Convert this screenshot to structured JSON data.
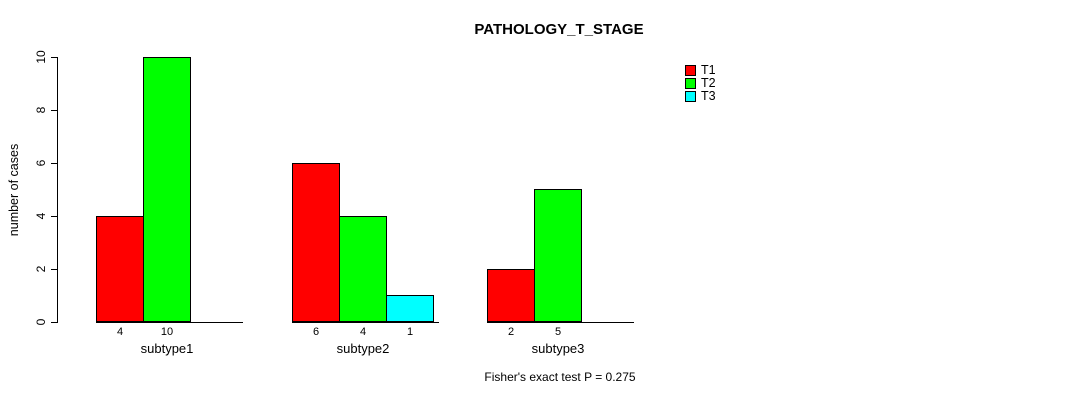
{
  "chart_data": {
    "type": "bar",
    "title": "PATHOLOGY_T_STAGE",
    "xlabel": "",
    "ylabel": "number of cases",
    "categories": [
      "subtype1",
      "subtype2",
      "subtype3"
    ],
    "series": [
      {
        "name": "T1",
        "color": "#ff0000",
        "values": [
          4,
          6,
          2
        ]
      },
      {
        "name": "T2",
        "color": "#00ff00",
        "values": [
          10,
          4,
          5
        ]
      },
      {
        "name": "T3",
        "color": "#00ffff",
        "values": [
          0,
          1,
          0
        ]
      }
    ],
    "bar_labels": [
      [
        "4",
        "10"
      ],
      [
        "6",
        "4",
        "1"
      ],
      [
        "2",
        "5"
      ]
    ],
    "yticks": [
      "0",
      "2",
      "4",
      "6",
      "8",
      "10"
    ],
    "ylim": [
      0,
      10
    ],
    "grid": false,
    "legend_position": "top-right",
    "legend": [
      {
        "label": "T1",
        "color": "#ff0000"
      },
      {
        "label": "T2",
        "color": "#00ff00"
      },
      {
        "label": "T3",
        "color": "#00ffff"
      }
    ],
    "annotation": "Fisher's exact test P = 0.275"
  }
}
